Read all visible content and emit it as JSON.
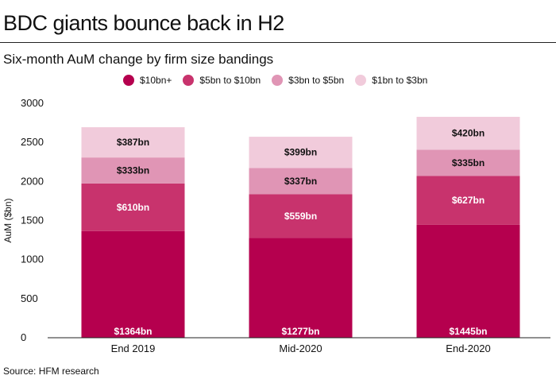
{
  "title": "BDC giants bounce back in H2",
  "subtitle": "Six-month AuM change by firm size bandings",
  "source": "Source: HFM research",
  "chart_data": {
    "type": "bar",
    "stacked": true,
    "categories": [
      "End 2019",
      "Mid-2020",
      "End-2020"
    ],
    "ylabel": "AuM ($bn)",
    "ylim": [
      0,
      3000
    ],
    "yticks": [
      0,
      500,
      1000,
      1500,
      2000,
      2500,
      3000
    ],
    "grid": false,
    "legend_position": "top",
    "series": [
      {
        "name": "$10bn+",
        "color": "#b5004e",
        "values": [
          1364,
          1277,
          1445
        ],
        "labels": [
          "$1364bn",
          "$1277bn",
          "$1445bn"
        ],
        "label_color": "#ffffff"
      },
      {
        "name": "$5bn to $10bn",
        "color": "#c8336d",
        "values": [
          610,
          559,
          627
        ],
        "labels": [
          "$610bn",
          "$559bn",
          "$627bn"
        ],
        "label_color": "#ffffff"
      },
      {
        "name": "$3bn to $5bn",
        "color": "#e095b5",
        "values": [
          333,
          337,
          335
        ],
        "labels": [
          "$333bn",
          "$337bn",
          "$335bn"
        ],
        "label_color": "#111111"
      },
      {
        "name": "$1bn to $3bn",
        "color": "#f1cbdb",
        "values": [
          387,
          399,
          420
        ],
        "labels": [
          "$387bn",
          "$399bn",
          "$420bn"
        ],
        "label_color": "#111111"
      }
    ]
  }
}
